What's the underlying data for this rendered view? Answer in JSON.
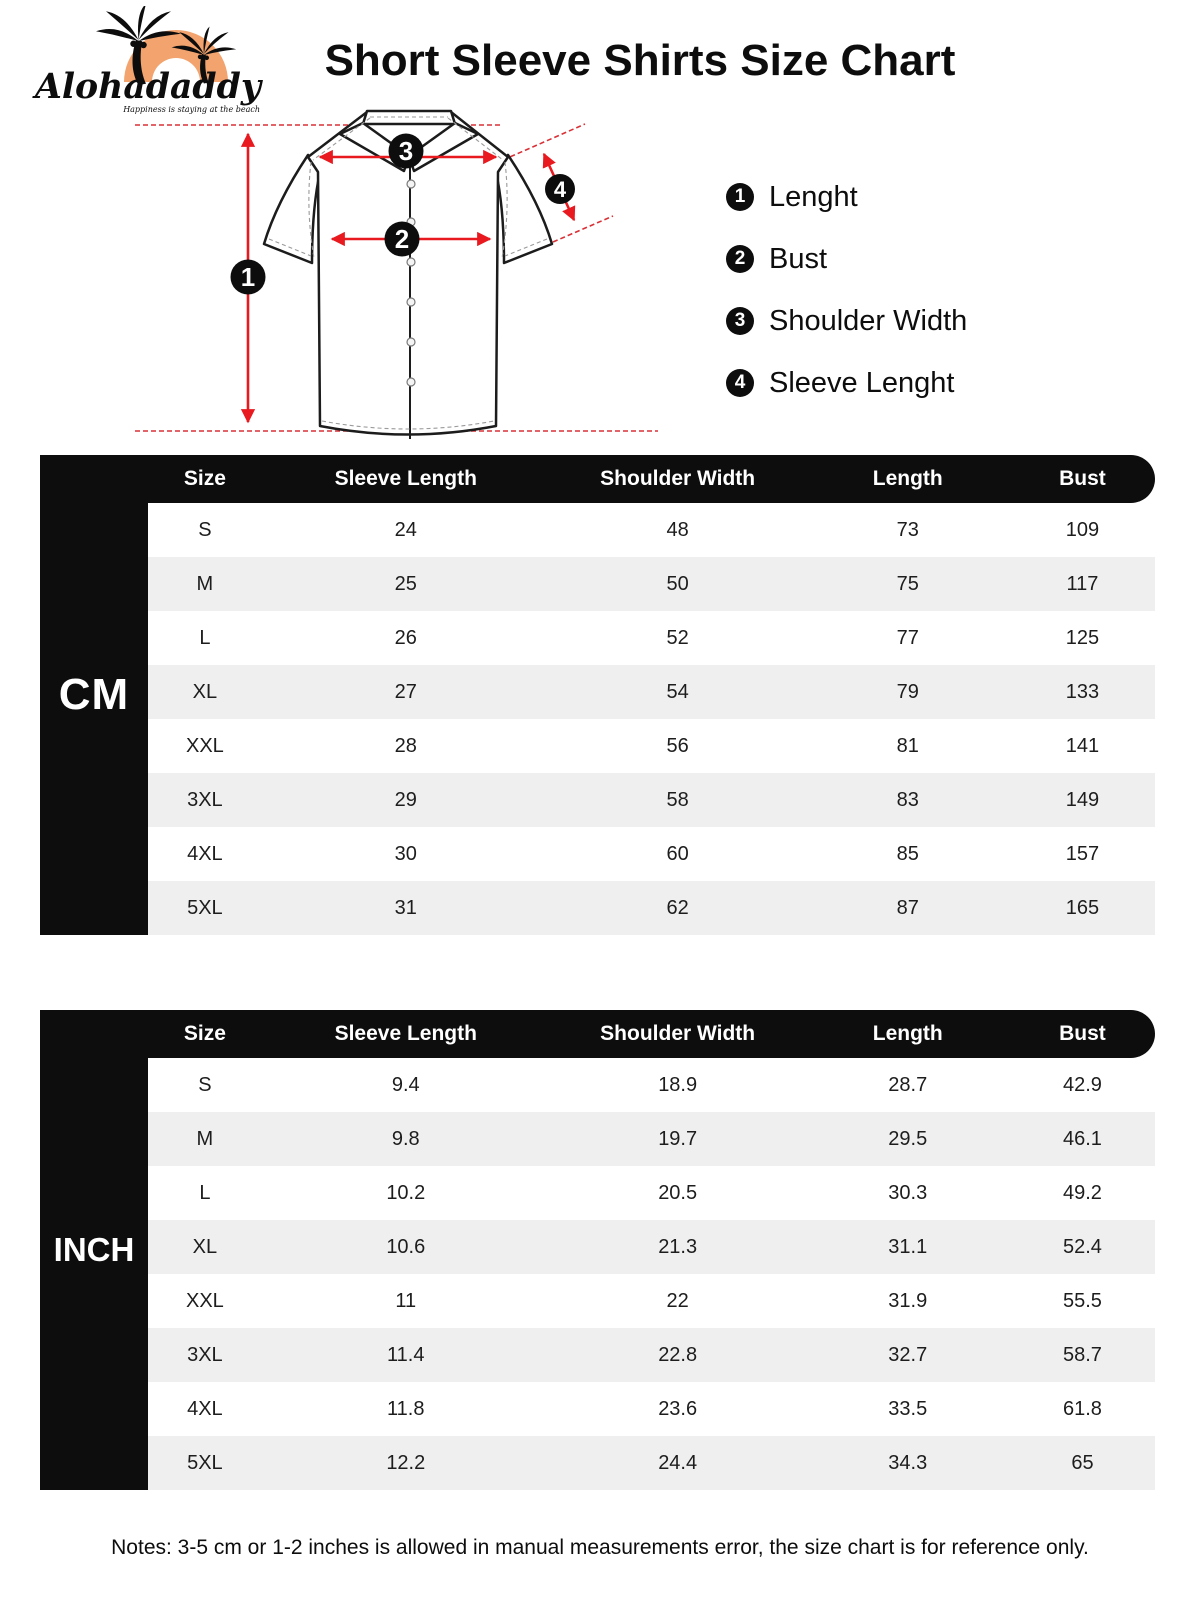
{
  "header": {
    "brand": "Alohadaddy",
    "tagline": "Happiness is staying at the beach",
    "title": "Short Sleeve Shirts Size Chart"
  },
  "diagram": {
    "markers": [
      "1",
      "2",
      "3",
      "4"
    ],
    "legend": [
      {
        "num": "1",
        "label": "Lenght"
      },
      {
        "num": "2",
        "label": "Bust"
      },
      {
        "num": "3",
        "label": "Shoulder Width"
      },
      {
        "num": "4",
        "label": "Sleeve Lenght"
      }
    ]
  },
  "tables": [
    {
      "unit": "CM",
      "columns": [
        "Size",
        "Sleeve Length",
        "Shoulder Width",
        "Length",
        "Bust"
      ],
      "rows": [
        [
          "S",
          "24",
          "48",
          "73",
          "109"
        ],
        [
          "M",
          "25",
          "50",
          "75",
          "117"
        ],
        [
          "L",
          "26",
          "52",
          "77",
          "125"
        ],
        [
          "XL",
          "27",
          "54",
          "79",
          "133"
        ],
        [
          "XXL",
          "28",
          "56",
          "81",
          "141"
        ],
        [
          "3XL",
          "29",
          "58",
          "83",
          "149"
        ],
        [
          "4XL",
          "30",
          "60",
          "85",
          "157"
        ],
        [
          "5XL",
          "31",
          "62",
          "87",
          "165"
        ]
      ]
    },
    {
      "unit": "INCH",
      "columns": [
        "Size",
        "Sleeve Length",
        "Shoulder Width",
        "Length",
        "Bust"
      ],
      "rows": [
        [
          "S",
          "9.4",
          "18.9",
          "28.7",
          "42.9"
        ],
        [
          "M",
          "9.8",
          "19.7",
          "29.5",
          "46.1"
        ],
        [
          "L",
          "10.2",
          "20.5",
          "30.3",
          "49.2"
        ],
        [
          "XL",
          "10.6",
          "21.3",
          "31.1",
          "52.4"
        ],
        [
          "XXL",
          "11",
          "22",
          "31.9",
          "55.5"
        ],
        [
          "3XL",
          "11.4",
          "22.8",
          "32.7",
          "58.7"
        ],
        [
          "4XL",
          "11.8",
          "23.6",
          "33.5",
          "61.8"
        ],
        [
          "5XL",
          "12.2",
          "24.4",
          "34.3",
          "65"
        ]
      ]
    }
  ],
  "notes": "Notes: 3-5 cm or 1-2 inches is allowed in manual measurements error, the size chart is for reference only.",
  "colors": {
    "accent_red": "#e8191f",
    "dashed_red": "#d93036",
    "row_alt": "#efefef",
    "logo_orange": "#f2a36e",
    "ink_black": "#0d0d0d"
  }
}
